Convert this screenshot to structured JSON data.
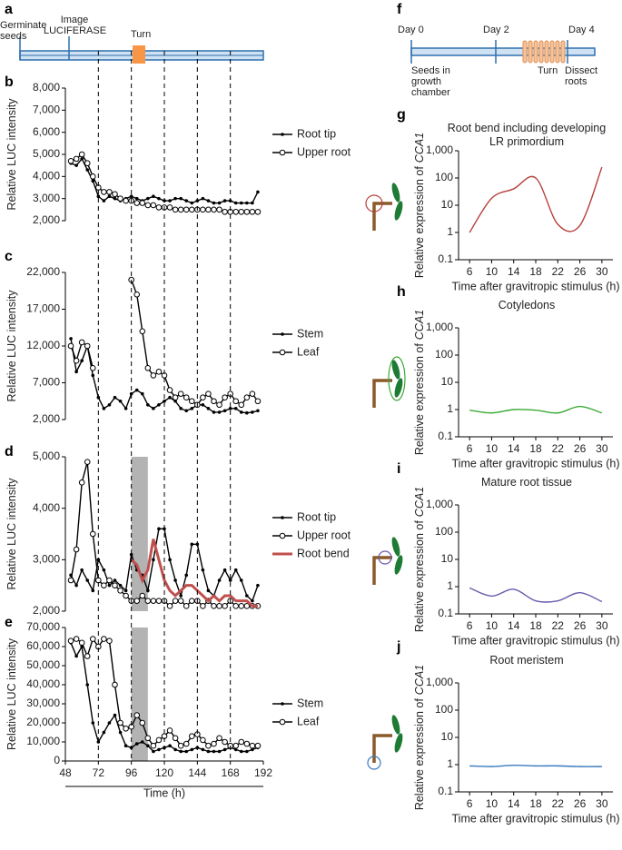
{
  "timeline_a": {
    "panel": "a",
    "labels": [
      "Germinate seeds",
      "Image LUCIFERASE"
    ],
    "turn": "Turn"
  },
  "timeline_f": {
    "panel": "f",
    "days": [
      "Day 0",
      "Day 2",
      "Day 4"
    ],
    "notes": [
      "Seeds in growth chamber",
      "Turn",
      "Dissect roots"
    ]
  },
  "chart_data": [
    {
      "type": "line",
      "panel": "b",
      "ylabel": "Relative LUC intensity",
      "legend": "right",
      "x": [
        52,
        56,
        60,
        64,
        68,
        72,
        76,
        80,
        84,
        88,
        92,
        96,
        100,
        104,
        108,
        112,
        116,
        120,
        124,
        128,
        132,
        136,
        140,
        144,
        148,
        152,
        156,
        160,
        164,
        168,
        172,
        176,
        180,
        184,
        188
      ],
      "xlim": [
        48,
        192
      ],
      "ylim": [
        2000,
        8000
      ],
      "yticks": [
        {
          "value": 2000,
          "label": "2,000"
        },
        {
          "value": 3000,
          "label": "3,000"
        },
        {
          "value": 4000,
          "label": "4,000"
        },
        {
          "value": 5000,
          "label": "5,000"
        },
        {
          "value": 6000,
          "label": "6,000"
        },
        {
          "value": 7000,
          "label": "7,000"
        },
        {
          "value": 8000,
          "label": "8,000"
        }
      ],
      "series": [
        {
          "name": "Root tip",
          "color": "#000000",
          "marker": "dot",
          "values": [
            4600,
            4500,
            4800,
            4300,
            3800,
            3100,
            2900,
            3100,
            3000,
            2900,
            3000,
            3100,
            3000,
            2900,
            3000,
            3100,
            3000,
            2900,
            2900,
            3000,
            3000,
            2900,
            2800,
            2900,
            3000,
            2900,
            2800,
            2800,
            2900,
            2900,
            2800,
            2800,
            2800,
            2800,
            3300
          ]
        },
        {
          "name": "Upper root",
          "color": "#000000",
          "marker": "circle",
          "values": [
            4700,
            4800,
            5000,
            4600,
            4000,
            3500,
            3300,
            3300,
            3200,
            3000,
            2900,
            2900,
            2800,
            2800,
            2700,
            2700,
            2600,
            2600,
            2600,
            2500,
            2500,
            2500,
            2500,
            2500,
            2500,
            2500,
            2500,
            2500,
            2400,
            2400,
            2400,
            2400,
            2400,
            2400,
            2400
          ]
        }
      ]
    },
    {
      "type": "line",
      "panel": "c",
      "ylabel": "Relative LUC intensity",
      "legend": "right",
      "x": [
        52,
        56,
        60,
        64,
        68,
        72,
        76,
        80,
        84,
        88,
        92,
        96,
        100,
        104,
        108,
        112,
        116,
        120,
        124,
        128,
        132,
        136,
        140,
        144,
        148,
        152,
        156,
        160,
        164,
        168,
        172,
        176,
        180,
        184,
        188
      ],
      "xlim": [
        48,
        192
      ],
      "ylim": [
        2000,
        22000
      ],
      "yticks": [
        {
          "value": 2000,
          "label": "2,000"
        },
        {
          "value": 7000,
          "label": "7,000"
        },
        {
          "value": 12000,
          "label": "12,000"
        },
        {
          "value": 17000,
          "label": "17,000"
        },
        {
          "value": 22000,
          "label": "22,000"
        }
      ],
      "series": [
        {
          "name": "Stem",
          "color": "#000000",
          "marker": "dot",
          "values": [
            13000,
            8500,
            10000,
            12000,
            8000,
            5000,
            3500,
            4000,
            5000,
            4500,
            3500,
            5500,
            6000,
            5500,
            4000,
            3500,
            4000,
            4500,
            5000,
            4500,
            3500,
            3200,
            3500,
            4000,
            4000,
            3500,
            3000,
            3000,
            3200,
            3500,
            3500,
            3000,
            2900,
            3000,
            3200
          ]
        },
        {
          "name": "Leaf",
          "color": "#000000",
          "marker": "circle",
          "values": [
            12000,
            10000,
            12500,
            12000,
            9000,
            null,
            null,
            null,
            null,
            null,
            null,
            21000,
            19000,
            14000,
            9000,
            8000,
            8500,
            8000,
            6000,
            5000,
            5500,
            5000,
            4500,
            4000,
            5000,
            5500,
            4500,
            4000,
            5000,
            5500,
            4500,
            4000,
            5000,
            5500,
            4500
          ]
        }
      ]
    },
    {
      "type": "line",
      "panel": "d",
      "ylabel": "Relative LUC intensity",
      "legend": "right",
      "highlight": [
        96,
        108
      ],
      "x": [
        52,
        56,
        60,
        64,
        68,
        72,
        76,
        80,
        84,
        88,
        92,
        96,
        100,
        104,
        108,
        112,
        116,
        120,
        124,
        128,
        132,
        136,
        140,
        144,
        148,
        152,
        156,
        160,
        164,
        168,
        172,
        176,
        180,
        184,
        188
      ],
      "xlim": [
        48,
        192
      ],
      "ylim": [
        2000,
        5000
      ],
      "yticks": [
        {
          "value": 2000,
          "label": "2,000"
        },
        {
          "value": 3000,
          "label": "3,000"
        },
        {
          "value": 4000,
          "label": "4,000"
        },
        {
          "value": 5000,
          "label": "5,000"
        }
      ],
      "series": [
        {
          "name": "Root tip",
          "color": "#000000",
          "marker": "dot",
          "values": [
            2700,
            2500,
            2800,
            2600,
            2400,
            3000,
            2800,
            2500,
            2600,
            2500,
            2400,
            3100,
            2800,
            2700,
            2400,
            3000,
            3600,
            3600,
            3000,
            2600,
            2300,
            2700,
            3300,
            3300,
            2800,
            2400,
            2300,
            2600,
            2800,
            2600,
            2800,
            2600,
            2300,
            2200,
            2500
          ]
        },
        {
          "name": "Upper root",
          "color": "#000000",
          "marker": "circle",
          "values": [
            2600,
            3200,
            4500,
            4900,
            3500,
            2600,
            2500,
            2600,
            2500,
            2400,
            2300,
            2200,
            2200,
            2300,
            2200,
            2200,
            2200,
            2200,
            2100,
            2200,
            2200,
            2100,
            2200,
            2200,
            2100,
            2200,
            2100,
            2100,
            2100,
            2200,
            2100,
            2100,
            2100,
            2100,
            2100
          ]
        },
        {
          "name": "Root bend",
          "color": "#c0504d",
          "line_width": 3,
          "values": [
            null,
            null,
            null,
            null,
            null,
            null,
            null,
            null,
            null,
            null,
            null,
            3000,
            2900,
            2600,
            2800,
            3400,
            3000,
            2600,
            2400,
            2300,
            2400,
            2500,
            2500,
            2400,
            2300,
            2200,
            2300,
            2200,
            2300,
            2300,
            2200,
            2200,
            2200,
            2100,
            2100
          ]
        }
      ]
    },
    {
      "type": "line",
      "panel": "e",
      "ylabel": "Relative LUC intensity",
      "xlabel": "Time  (h)",
      "legend": "right",
      "highlight": [
        96,
        108
      ],
      "x": [
        52,
        56,
        60,
        64,
        68,
        72,
        76,
        80,
        84,
        88,
        92,
        96,
        100,
        104,
        108,
        112,
        116,
        120,
        124,
        128,
        132,
        136,
        140,
        144,
        148,
        152,
        156,
        160,
        164,
        168,
        172,
        176,
        180,
        184,
        188
      ],
      "xlim": [
        48,
        192
      ],
      "xticks": [
        48,
        72,
        96,
        120,
        144,
        168,
        192
      ],
      "ylim": [
        0,
        70000
      ],
      "yticks": [
        0,
        {
          "value": 10000,
          "label": "10,000"
        },
        {
          "value": 20000,
          "label": "20,000"
        },
        {
          "value": 30000,
          "label": "30,000"
        },
        {
          "value": 40000,
          "label": "40,000"
        },
        {
          "value": 50000,
          "label": "50,000"
        },
        {
          "value": 60000,
          "label": "60,000"
        },
        {
          "value": 70000,
          "label": "70,000"
        }
      ],
      "series": [
        {
          "name": "Stem",
          "color": "#000000",
          "marker": "dot",
          "values": [
            62000,
            55000,
            60000,
            40000,
            20000,
            10000,
            15000,
            20000,
            24000,
            15000,
            8000,
            7000,
            9000,
            10000,
            8000,
            5000,
            6000,
            7000,
            8000,
            6000,
            5000,
            5000,
            6000,
            7000,
            6000,
            5000,
            5000,
            5000,
            6000,
            7000,
            6000,
            5000,
            5000,
            6000,
            7000
          ]
        },
        {
          "name": "Leaf",
          "color": "#000000",
          "marker": "circle",
          "values": [
            63000,
            64000,
            62000,
            55000,
            64000,
            60000,
            64000,
            63000,
            40000,
            20000,
            17000,
            18000,
            24000,
            20000,
            12000,
            8000,
            11000,
            13000,
            16000,
            12000,
            8000,
            9000,
            13000,
            14000,
            11000,
            8000,
            9000,
            12000,
            10000,
            8000,
            8000,
            10000,
            9000,
            8000,
            8000
          ]
        }
      ]
    },
    {
      "type": "line",
      "panel": "g",
      "title": "Root bend including developing LR primordium",
      "log_scale": true,
      "smooth": true,
      "ylabel": "Relative expression of",
      "ylabel_gene": "CCA1",
      "xlabel": "Time after gravitropic stimulus (h)",
      "x": [
        6,
        10,
        14,
        18,
        22,
        26,
        30
      ],
      "xlim": [
        4,
        32
      ],
      "xticks": [
        6,
        10,
        14,
        18,
        22,
        26,
        30
      ],
      "ylim": [
        0.1,
        1000
      ],
      "yticks": [
        0.1,
        1,
        10,
        100,
        {
          "value": 1000,
          "label": "1,000"
        }
      ],
      "series": [
        {
          "color": "#b5403a",
          "values": [
            1,
            18,
            40,
            100,
            2,
            1.8,
            250
          ]
        }
      ]
    },
    {
      "type": "line",
      "panel": "h",
      "title": "Cotyledons",
      "log_scale": true,
      "smooth": true,
      "ylabel": "Relative expression of",
      "ylabel_gene": "CCA1",
      "xlabel": "Time after gravitropic stimulus (h)",
      "x": [
        6,
        10,
        14,
        18,
        22,
        26,
        30
      ],
      "xlim": [
        4,
        32
      ],
      "xticks": [
        6,
        10,
        14,
        18,
        22,
        26,
        30
      ],
      "ylim": [
        0.1,
        1000
      ],
      "yticks": [
        0.1,
        1,
        10,
        100,
        {
          "value": 1000,
          "label": "1,000"
        }
      ],
      "series": [
        {
          "color": "#3aaa35",
          "values": [
            0.95,
            0.75,
            1,
            0.95,
            0.75,
            1.3,
            0.75
          ]
        }
      ]
    },
    {
      "type": "line",
      "panel": "i",
      "title": "Mature root tissue",
      "log_scale": true,
      "smooth": true,
      "ylabel": "Relative expression of",
      "ylabel_gene": "CCA1",
      "xlabel": "Time after gravitropic stimulus (h)",
      "x": [
        6,
        10,
        14,
        18,
        22,
        26,
        30
      ],
      "xlim": [
        4,
        32
      ],
      "xticks": [
        6,
        10,
        14,
        18,
        22,
        26,
        30
      ],
      "ylim": [
        0.1,
        1000
      ],
      "yticks": [
        0.1,
        1,
        10,
        100,
        {
          "value": 1000,
          "label": "1,000"
        }
      ],
      "series": [
        {
          "color": "#6a5aad",
          "values": [
            0.9,
            0.45,
            0.8,
            0.3,
            0.3,
            0.6,
            0.28
          ]
        }
      ]
    },
    {
      "type": "line",
      "panel": "j",
      "title": "Root meristem",
      "log_scale": true,
      "smooth": true,
      "ylabel": "Relative expression of",
      "ylabel_gene": "CCA1",
      "xlabel": "Time after gravitropic stimulus (h)",
      "x": [
        6,
        10,
        14,
        18,
        22,
        26,
        30
      ],
      "xlim": [
        4,
        32
      ],
      "xticks": [
        6,
        10,
        14,
        18,
        22,
        26,
        30
      ],
      "ylim": [
        0.1,
        1000
      ],
      "yticks": [
        0.1,
        1,
        10,
        100,
        {
          "value": 1000,
          "label": "1,000"
        }
      ],
      "series": [
        {
          "color": "#3a7ac0",
          "values": [
            0.9,
            0.85,
            0.95,
            0.9,
            0.9,
            0.85,
            0.85
          ]
        }
      ]
    }
  ]
}
